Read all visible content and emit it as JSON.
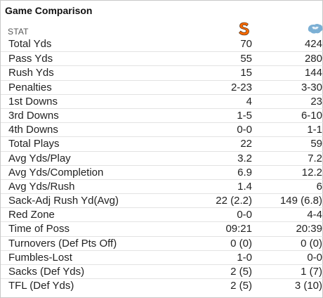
{
  "title": "Game Comparison",
  "header": {
    "stat_label": "STAT",
    "home_logo": "syracuse-s-logo",
    "away_logo": "unc-ram-logo",
    "home_color": "#f76900",
    "away_color": "#7bafd4"
  },
  "rows": [
    {
      "stat": "Total Yds",
      "home": "70",
      "away": "424"
    },
    {
      "stat": "Pass Yds",
      "home": "55",
      "away": "280"
    },
    {
      "stat": "Rush Yds",
      "home": "15",
      "away": "144"
    },
    {
      "stat": "Penalties",
      "home": "2-23",
      "away": "3-30"
    },
    {
      "stat": "1st Downs",
      "home": "4",
      "away": "23"
    },
    {
      "stat": "3rd Downs",
      "home": "1-5",
      "away": "6-10"
    },
    {
      "stat": "4th Downs",
      "home": "0-0",
      "away": "1-1"
    },
    {
      "stat": "Total Plays",
      "home": "22",
      "away": "59"
    },
    {
      "stat": "Avg Yds/Play",
      "home": "3.2",
      "away": "7.2"
    },
    {
      "stat": "Avg Yds/Completion",
      "home": "6.9",
      "away": "12.2"
    },
    {
      "stat": "Avg Yds/Rush",
      "home": "1.4",
      "away": "6"
    },
    {
      "stat": "Sack-Adj Rush Yd(Avg)",
      "home": "22 (2.2)",
      "away": "149 (6.8)"
    },
    {
      "stat": "Red Zone",
      "home": "0-0",
      "away": "4-4"
    },
    {
      "stat": "Time of Poss",
      "home": "09:21",
      "away": "20:39"
    },
    {
      "stat": "Turnovers (Def Pts Off)",
      "home": "0 (0)",
      "away": "0 (0)"
    },
    {
      "stat": "Fumbles-Lost",
      "home": "1-0",
      "away": "0-0"
    },
    {
      "stat": "Sacks (Def Yds)",
      "home": "2 (5)",
      "away": "1 (7)"
    },
    {
      "stat": "TFL (Def Yds)",
      "home": "2 (5)",
      "away": "3 (10)"
    }
  ]
}
